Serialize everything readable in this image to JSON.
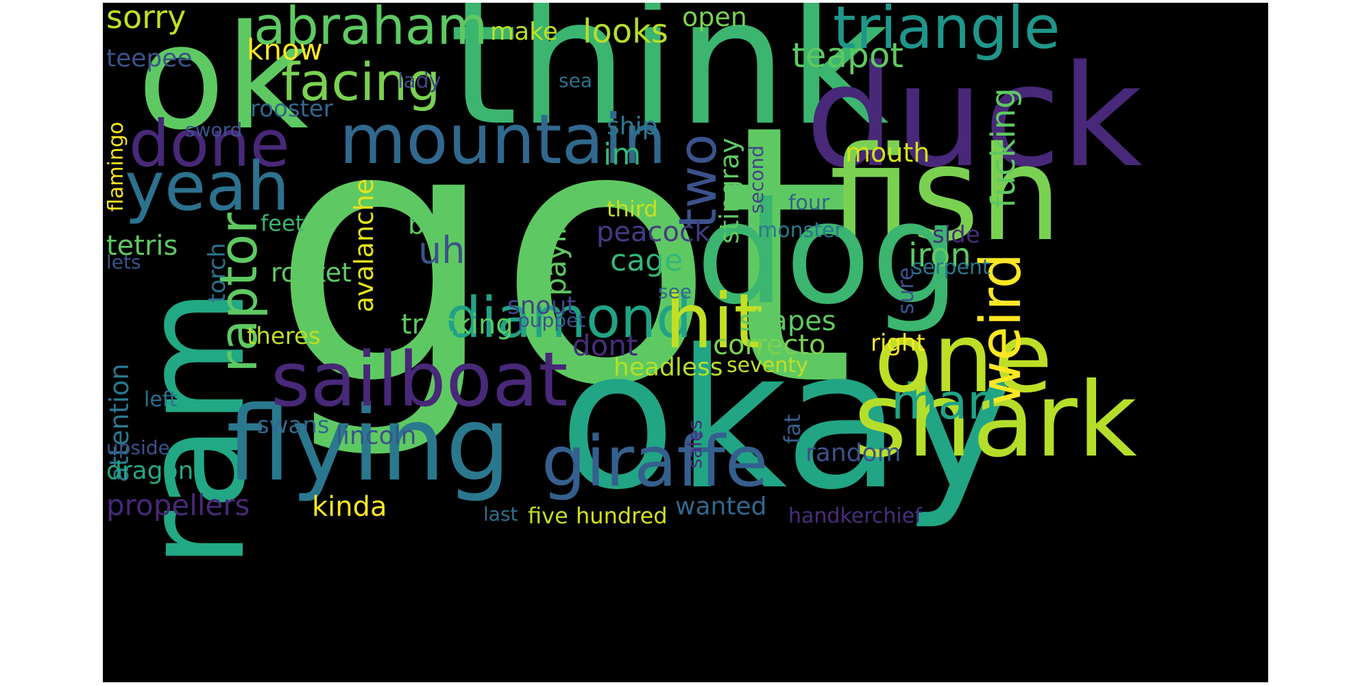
{
  "background": "#000000",
  "words": [
    {
      "text": "got",
      "color": "#5ec962"
    },
    {
      "text": "think",
      "color": "#3bb56f"
    },
    {
      "text": "okay",
      "color": "#21a585"
    },
    {
      "text": "ok",
      "color": "#5ec962"
    },
    {
      "text": "duck",
      "color": "#482878"
    },
    {
      "text": "fish",
      "color": "#7ad151"
    },
    {
      "text": "dog",
      "color": "#3bb56f"
    },
    {
      "text": "ram",
      "color": "#22a884"
    },
    {
      "text": "shark",
      "color": "#b5de2b"
    },
    {
      "text": "one",
      "color": "#bddf26"
    },
    {
      "text": "flying",
      "color": "#2a788e"
    },
    {
      "text": "giraffe",
      "color": "#355f8d"
    },
    {
      "text": "sailboat",
      "color": "#482878"
    },
    {
      "text": "mountain",
      "color": "#31688e"
    },
    {
      "text": "triangle",
      "color": "#1f968b"
    },
    {
      "text": "abraham",
      "color": "#5ec962"
    },
    {
      "text": "facing",
      "color": "#7ad151"
    },
    {
      "text": "done",
      "color": "#482878"
    },
    {
      "text": "yeah",
      "color": "#2c728e"
    },
    {
      "text": "raptor",
      "color": "#5ec962"
    },
    {
      "text": "diamond",
      "color": "#20a386"
    },
    {
      "text": "hit",
      "color": "#c2df23"
    },
    {
      "text": "weird",
      "color": "#fde725"
    },
    {
      "text": "two",
      "color": "#3b528b"
    },
    {
      "text": "man",
      "color": "#20a386"
    },
    {
      "text": "teapot",
      "color": "#5ec962"
    },
    {
      "text": "fucking",
      "color": "#5ec962"
    },
    {
      "text": "looks",
      "color": "#b5de2b"
    },
    {
      "text": "make",
      "color": "#bddf26"
    },
    {
      "text": "open",
      "color": "#7ad151"
    },
    {
      "text": "sorry",
      "color": "#c2df23"
    },
    {
      "text": "know",
      "color": "#fde725"
    },
    {
      "text": "teepee",
      "color": "#3b528b"
    },
    {
      "text": "rooster",
      "color": "#31688e"
    },
    {
      "text": "lady",
      "color": "#414487"
    },
    {
      "text": "sea",
      "color": "#2c728e"
    },
    {
      "text": "flamingo",
      "color": "#fde725"
    },
    {
      "text": "sword",
      "color": "#3b528b"
    },
    {
      "text": "ship",
      "color": "#2a788e"
    },
    {
      "text": "im",
      "color": "#35b779"
    },
    {
      "text": "mouth",
      "color": "#d2e21b"
    },
    {
      "text": "stingray",
      "color": "#5ec962"
    },
    {
      "text": "second",
      "color": "#414487"
    },
    {
      "text": "four",
      "color": "#355f8d"
    },
    {
      "text": "third",
      "color": "#c8e020"
    },
    {
      "text": "bird",
      "color": "#5ec962"
    },
    {
      "text": "uh",
      "color": "#3b528b"
    },
    {
      "text": "feet",
      "color": "#3bb56f"
    },
    {
      "text": "paying",
      "color": "#5ec962"
    },
    {
      "text": "peacock",
      "color": "#443a83"
    },
    {
      "text": "monster",
      "color": "#2a788e"
    },
    {
      "text": "side",
      "color": "#472d7b"
    },
    {
      "text": "avalanche",
      "color": "#e5e419"
    },
    {
      "text": "tetris",
      "color": "#5ec962"
    },
    {
      "text": "torch",
      "color": "#2c728e"
    },
    {
      "text": "lets",
      "color": "#3b528b"
    },
    {
      "text": "cage",
      "color": "#35b779"
    },
    {
      "text": "iron",
      "color": "#5ec962"
    },
    {
      "text": "serpent",
      "color": "#2a788e"
    },
    {
      "text": "rocket",
      "color": "#5ec962"
    },
    {
      "text": "sure",
      "color": "#3b528b"
    },
    {
      "text": "see",
      "color": "#31688e"
    },
    {
      "text": "snout",
      "color": "#414487"
    },
    {
      "text": "puppet",
      "color": "#3b528b"
    },
    {
      "text": "tracking",
      "color": "#5ec962"
    },
    {
      "text": "shapes",
      "color": "#5ec962"
    },
    {
      "text": "theres",
      "color": "#bddf26"
    },
    {
      "text": "dont",
      "color": "#472d7b"
    },
    {
      "text": "correcto",
      "color": "#7ad151"
    },
    {
      "text": "right",
      "color": "#fde725"
    },
    {
      "text": "headless",
      "color": "#b5de2b"
    },
    {
      "text": "seventy",
      "color": "#c2df23"
    },
    {
      "text": "attention",
      "color": "#2a788e"
    },
    {
      "text": "left",
      "color": "#2c728e"
    },
    {
      "text": "swans",
      "color": "#31688e"
    },
    {
      "text": "lincoln",
      "color": "#3b528b"
    },
    {
      "text": "fat",
      "color": "#355f8d"
    },
    {
      "text": "sales",
      "color": "#472d7b"
    },
    {
      "text": "random",
      "color": "#3b528b"
    },
    {
      "text": "upside",
      "color": "#3b528b"
    },
    {
      "text": "dragon",
      "color": "#22a884"
    },
    {
      "text": "kinda",
      "color": "#fde725"
    },
    {
      "text": "propellers",
      "color": "#482878"
    },
    {
      "text": "wanted",
      "color": "#31688e"
    },
    {
      "text": "last",
      "color": "#2c728e"
    },
    {
      "text": "five",
      "color": "#bddf26"
    },
    {
      "text": "hundred",
      "color": "#d2e21b"
    },
    {
      "text": "handkerchief",
      "color": "#472d7b"
    }
  ]
}
